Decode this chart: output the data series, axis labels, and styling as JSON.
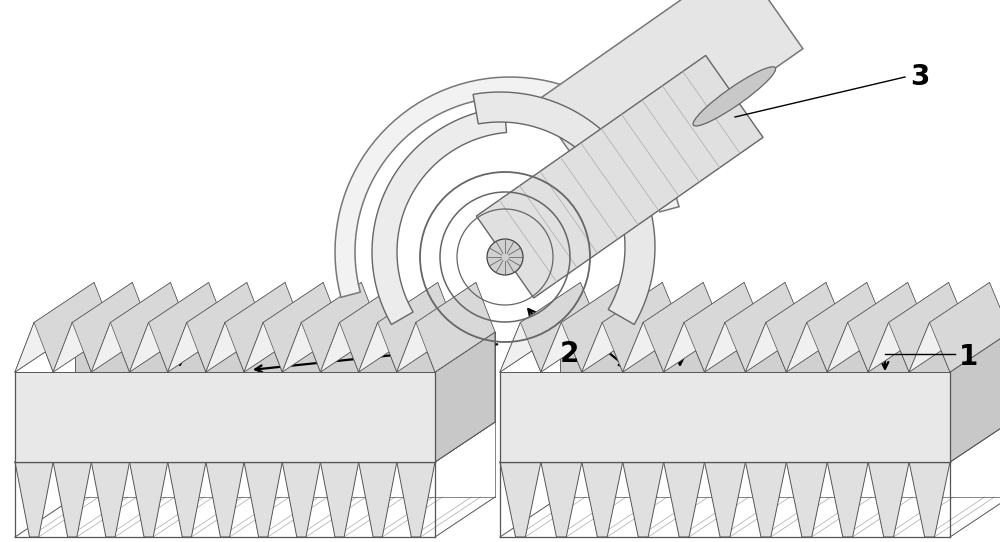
{
  "background_color": "#ffffff",
  "fig_width": 10.0,
  "fig_height": 5.42,
  "dpi": 100,
  "label_1": "1",
  "label_2": "2",
  "label_3": "3",
  "label_fontsize": 20,
  "label_fontweight": "bold",
  "line_color": "#000000",
  "edge_color": "#555555",
  "face_light": "#f0f0f0",
  "face_mid": "#d8d8d8",
  "face_dark": "#b0b0b0",
  "prism_top": "#e8e8e8",
  "prism_side": "#c0c0c0",
  "concentrator_fill": "#ebebeb",
  "concentrator_edge": "#666666"
}
